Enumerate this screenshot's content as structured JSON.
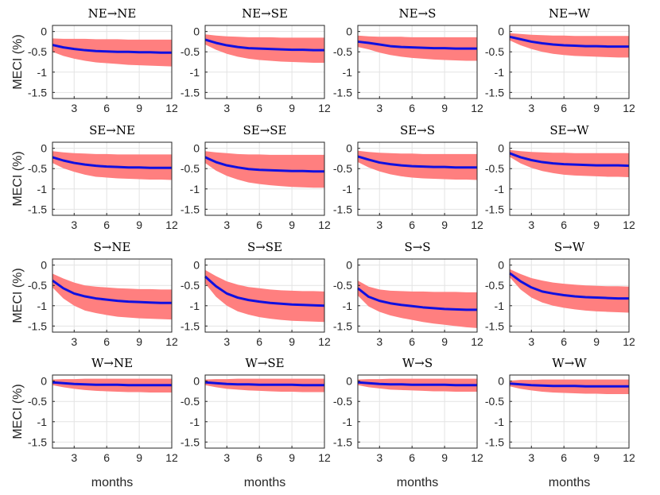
{
  "chart_data": {
    "type": "line",
    "layout": "4x4 grid of small multiples",
    "xlabel": "months",
    "ylabel": "MECI (%)",
    "x": [
      1,
      2,
      3,
      4,
      5,
      6,
      7,
      8,
      9,
      10,
      11,
      12
    ],
    "xlim": [
      1,
      12
    ],
    "ylim": [
      -1.65,
      0.15
    ],
    "xticks": [
      3,
      6,
      9,
      12
    ],
    "xtick_labels": [
      "3",
      "6",
      "9",
      "12"
    ],
    "yticks": [
      0,
      -0.5,
      -1,
      -1.5
    ],
    "ytick_labels": [
      "0",
      "-0.5",
      "-1",
      "-1.5"
    ],
    "grid": true,
    "band_label": "confidence band",
    "colors": {
      "band": "#ff7f7f",
      "line": "#1010e0",
      "grid": "#e3e3e3"
    },
    "panels": [
      {
        "title": "NE→NE",
        "mean": [
          -0.33,
          -0.39,
          -0.43,
          -0.46,
          -0.48,
          -0.49,
          -0.5,
          -0.5,
          -0.51,
          -0.51,
          -0.52,
          -0.52
        ],
        "lower": [
          -0.5,
          -0.6,
          -0.67,
          -0.72,
          -0.76,
          -0.78,
          -0.8,
          -0.82,
          -0.83,
          -0.84,
          -0.85,
          -0.86
        ],
        "upper": [
          -0.17,
          -0.18,
          -0.18,
          -0.18,
          -0.19,
          -0.19,
          -0.19,
          -0.2,
          -0.2,
          -0.2,
          -0.2,
          -0.2
        ]
      },
      {
        "title": "NE→SE",
        "mean": [
          -0.2,
          -0.28,
          -0.34,
          -0.38,
          -0.41,
          -0.42,
          -0.43,
          -0.44,
          -0.45,
          -0.45,
          -0.46,
          -0.46
        ],
        "lower": [
          -0.32,
          -0.45,
          -0.55,
          -0.62,
          -0.67,
          -0.7,
          -0.72,
          -0.74,
          -0.75,
          -0.76,
          -0.77,
          -0.77
        ],
        "upper": [
          -0.07,
          -0.1,
          -0.12,
          -0.13,
          -0.14,
          -0.14,
          -0.14,
          -0.15,
          -0.15,
          -0.15,
          -0.15,
          -0.15
        ]
      },
      {
        "title": "NE→S",
        "mean": [
          -0.25,
          -0.28,
          -0.32,
          -0.36,
          -0.38,
          -0.39,
          -0.4,
          -0.41,
          -0.41,
          -0.42,
          -0.42,
          -0.42
        ],
        "lower": [
          -0.38,
          -0.44,
          -0.52,
          -0.58,
          -0.62,
          -0.65,
          -0.67,
          -0.69,
          -0.7,
          -0.71,
          -0.72,
          -0.72
        ],
        "upper": [
          -0.1,
          -0.12,
          -0.13,
          -0.13,
          -0.13,
          -0.14,
          -0.14,
          -0.14,
          -0.14,
          -0.14,
          -0.14,
          -0.14
        ]
      },
      {
        "title": "NE→W",
        "mean": [
          -0.13,
          -0.19,
          -0.25,
          -0.29,
          -0.32,
          -0.34,
          -0.35,
          -0.36,
          -0.36,
          -0.37,
          -0.37,
          -0.37
        ],
        "lower": [
          -0.22,
          -0.34,
          -0.43,
          -0.5,
          -0.55,
          -0.58,
          -0.6,
          -0.61,
          -0.62,
          -0.63,
          -0.64,
          -0.64
        ],
        "upper": [
          -0.04,
          -0.06,
          -0.08,
          -0.09,
          -0.1,
          -0.1,
          -0.11,
          -0.11,
          -0.11,
          -0.11,
          -0.11,
          -0.11
        ]
      },
      {
        "title": "SE→NE",
        "mean": [
          -0.22,
          -0.3,
          -0.36,
          -0.4,
          -0.43,
          -0.45,
          -0.46,
          -0.47,
          -0.47,
          -0.48,
          -0.48,
          -0.48
        ],
        "lower": [
          -0.36,
          -0.49,
          -0.58,
          -0.65,
          -0.7,
          -0.72,
          -0.74,
          -0.75,
          -0.76,
          -0.77,
          -0.77,
          -0.78
        ],
        "upper": [
          -0.07,
          -0.1,
          -0.12,
          -0.13,
          -0.14,
          -0.14,
          -0.15,
          -0.15,
          -0.15,
          -0.15,
          -0.15,
          -0.15
        ]
      },
      {
        "title": "SE→SE",
        "mean": [
          -0.22,
          -0.34,
          -0.42,
          -0.47,
          -0.51,
          -0.53,
          -0.54,
          -0.55,
          -0.56,
          -0.56,
          -0.57,
          -0.57
        ],
        "lower": [
          -0.36,
          -0.55,
          -0.68,
          -0.77,
          -0.84,
          -0.88,
          -0.91,
          -0.93,
          -0.95,
          -0.96,
          -0.97,
          -0.97
        ],
        "upper": [
          -0.07,
          -0.1,
          -0.12,
          -0.14,
          -0.15,
          -0.15,
          -0.16,
          -0.16,
          -0.16,
          -0.16,
          -0.16,
          -0.16
        ]
      },
      {
        "title": "SE→S",
        "mean": [
          -0.2,
          -0.28,
          -0.35,
          -0.39,
          -0.42,
          -0.44,
          -0.45,
          -0.46,
          -0.46,
          -0.47,
          -0.47,
          -0.47
        ],
        "lower": [
          -0.34,
          -0.47,
          -0.57,
          -0.64,
          -0.69,
          -0.72,
          -0.74,
          -0.75,
          -0.76,
          -0.77,
          -0.77,
          -0.78
        ],
        "upper": [
          -0.06,
          -0.09,
          -0.11,
          -0.12,
          -0.13,
          -0.13,
          -0.14,
          -0.14,
          -0.14,
          -0.14,
          -0.14,
          -0.14
        ]
      },
      {
        "title": "SE→W",
        "mean": [
          -0.12,
          -0.22,
          -0.29,
          -0.34,
          -0.37,
          -0.39,
          -0.4,
          -0.41,
          -0.42,
          -0.42,
          -0.42,
          -0.43
        ],
        "lower": [
          -0.21,
          -0.37,
          -0.48,
          -0.56,
          -0.61,
          -0.65,
          -0.67,
          -0.68,
          -0.69,
          -0.7,
          -0.7,
          -0.71
        ],
        "upper": [
          -0.04,
          -0.07,
          -0.09,
          -0.1,
          -0.11,
          -0.11,
          -0.12,
          -0.12,
          -0.12,
          -0.12,
          -0.12,
          -0.12
        ]
      },
      {
        "title": "S→NE",
        "mean": [
          -0.38,
          -0.57,
          -0.7,
          -0.77,
          -0.82,
          -0.85,
          -0.88,
          -0.9,
          -0.91,
          -0.92,
          -0.93,
          -0.93
        ],
        "lower": [
          -0.55,
          -0.82,
          -1.0,
          -1.12,
          -1.18,
          -1.23,
          -1.27,
          -1.29,
          -1.31,
          -1.32,
          -1.33,
          -1.34
        ],
        "upper": [
          -0.21,
          -0.33,
          -0.43,
          -0.5,
          -0.53,
          -0.55,
          -0.57,
          -0.58,
          -0.59,
          -0.59,
          -0.6,
          -0.6
        ]
      },
      {
        "title": "S→SE",
        "mean": [
          -0.28,
          -0.52,
          -0.7,
          -0.8,
          -0.86,
          -0.9,
          -0.93,
          -0.95,
          -0.97,
          -0.98,
          -0.99,
          -1.0
        ],
        "lower": [
          -0.45,
          -0.78,
          -1.0,
          -1.14,
          -1.22,
          -1.28,
          -1.32,
          -1.35,
          -1.37,
          -1.38,
          -1.39,
          -1.4
        ],
        "upper": [
          -0.12,
          -0.27,
          -0.4,
          -0.48,
          -0.54,
          -0.57,
          -0.6,
          -0.62,
          -0.63,
          -0.64,
          -0.64,
          -0.65
        ]
      },
      {
        "title": "S→S",
        "mean": [
          -0.57,
          -0.78,
          -0.88,
          -0.94,
          -0.98,
          -1.01,
          -1.04,
          -1.06,
          -1.08,
          -1.09,
          -1.1,
          -1.1
        ],
        "lower": [
          -0.75,
          -1.02,
          -1.15,
          -1.24,
          -1.3,
          -1.35,
          -1.4,
          -1.44,
          -1.47,
          -1.5,
          -1.53,
          -1.55
        ],
        "upper": [
          -0.38,
          -0.53,
          -0.6,
          -0.63,
          -0.64,
          -0.65,
          -0.65,
          -0.66,
          -0.66,
          -0.66,
          -0.67,
          -0.67
        ]
      },
      {
        "title": "S→W",
        "mean": [
          -0.2,
          -0.4,
          -0.55,
          -0.65,
          -0.7,
          -0.74,
          -0.77,
          -0.79,
          -0.8,
          -0.81,
          -0.82,
          -0.82
        ],
        "lower": [
          -0.3,
          -0.6,
          -0.8,
          -0.92,
          -1.0,
          -1.05,
          -1.09,
          -1.12,
          -1.14,
          -1.15,
          -1.16,
          -1.17
        ],
        "upper": [
          -0.1,
          -0.22,
          -0.32,
          -0.38,
          -0.43,
          -0.46,
          -0.48,
          -0.5,
          -0.51,
          -0.52,
          -0.52,
          -0.53
        ]
      },
      {
        "title": "W→NE",
        "mean": [
          -0.03,
          -0.05,
          -0.07,
          -0.08,
          -0.09,
          -0.09,
          -0.09,
          -0.1,
          -0.1,
          -0.1,
          -0.1,
          -0.1
        ],
        "lower": [
          -0.1,
          -0.15,
          -0.19,
          -0.22,
          -0.24,
          -0.25,
          -0.26,
          -0.27,
          -0.27,
          -0.28,
          -0.28,
          -0.28
        ],
        "upper": [
          0.04,
          0.05,
          0.05,
          0.06,
          0.06,
          0.06,
          0.06,
          0.06,
          0.06,
          0.06,
          0.06,
          0.06
        ]
      },
      {
        "title": "W→SE",
        "mean": [
          -0.03,
          -0.05,
          -0.07,
          -0.08,
          -0.08,
          -0.09,
          -0.09,
          -0.09,
          -0.09,
          -0.1,
          -0.1,
          -0.1
        ],
        "lower": [
          -0.1,
          -0.15,
          -0.19,
          -0.21,
          -0.23,
          -0.24,
          -0.25,
          -0.26,
          -0.26,
          -0.27,
          -0.27,
          -0.27
        ],
        "upper": [
          0.04,
          0.05,
          0.05,
          0.06,
          0.06,
          0.06,
          0.06,
          0.06,
          0.06,
          0.06,
          0.06,
          0.06
        ]
      },
      {
        "title": "W→S",
        "mean": [
          -0.03,
          -0.05,
          -0.07,
          -0.08,
          -0.08,
          -0.09,
          -0.09,
          -0.09,
          -0.09,
          -0.1,
          -0.1,
          -0.1
        ],
        "lower": [
          -0.1,
          -0.15,
          -0.18,
          -0.21,
          -0.22,
          -0.23,
          -0.24,
          -0.25,
          -0.25,
          -0.26,
          -0.26,
          -0.26
        ],
        "upper": [
          0.04,
          0.05,
          0.05,
          0.06,
          0.06,
          0.06,
          0.06,
          0.06,
          0.06,
          0.06,
          0.06,
          0.06
        ]
      },
      {
        "title": "W→W",
        "mean": [
          -0.06,
          -0.08,
          -0.1,
          -0.11,
          -0.12,
          -0.12,
          -0.12,
          -0.13,
          -0.13,
          -0.13,
          -0.13,
          -0.13
        ],
        "lower": [
          -0.13,
          -0.19,
          -0.23,
          -0.26,
          -0.28,
          -0.29,
          -0.3,
          -0.31,
          -0.31,
          -0.32,
          -0.32,
          -0.32
        ],
        "upper": [
          0.01,
          0.03,
          0.03,
          0.04,
          0.04,
          0.04,
          0.04,
          0.04,
          0.04,
          0.04,
          0.04,
          0.04
        ]
      }
    ]
  }
}
